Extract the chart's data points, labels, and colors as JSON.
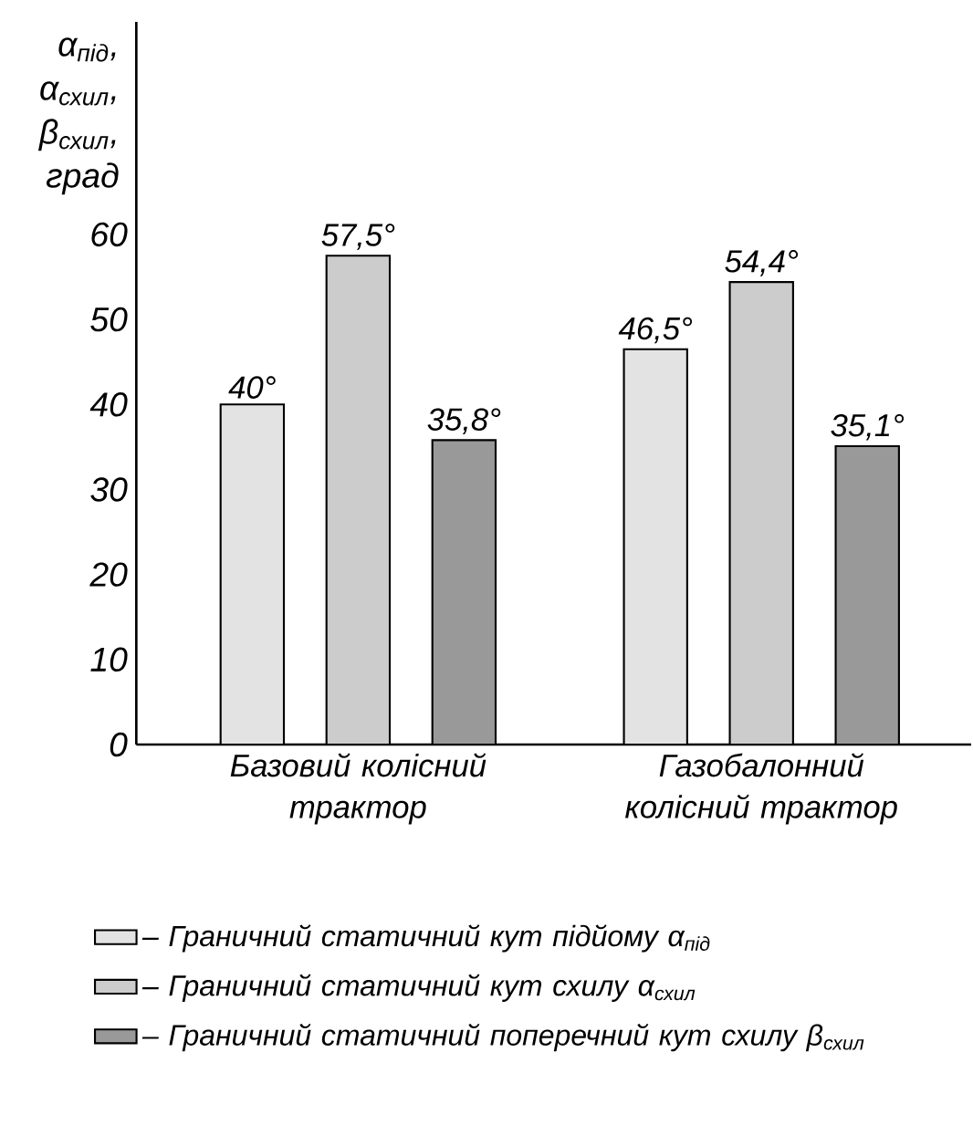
{
  "chart_data": {
    "type": "bar",
    "ylabel": "α$_{під}$, α$_{схил}$, β$_{схил}$, град",
    "categories": [
      "Базовий колісний трактор",
      "Газобалонний колісний трактор"
    ],
    "series": [
      {
        "name": "– Граничний статичний кут підйому α$_{під}$",
        "color": "#e3e3e3",
        "values": [
          40,
          46.5
        ],
        "value_labels": [
          "40°",
          "46,5°"
        ]
      },
      {
        "name": "– Граничний статичний кут схилу α$_{схил}$",
        "color": "#cccccc",
        "values": [
          57.5,
          54.4
        ],
        "value_labels": [
          "57,5°",
          "54,4°"
        ]
      },
      {
        "name": "– Граничний статичний поперечний кут схилу β$_{схил}$",
        "color": "#999999",
        "values": [
          35.8,
          35.1
        ],
        "value_labels": [
          "35,8°",
          "35,1°"
        ]
      }
    ],
    "ylim": [
      0,
      85
    ],
    "yticks": [
      0,
      10,
      20,
      30,
      40,
      50,
      60
    ],
    "grid": false,
    "legend": "bottom"
  }
}
